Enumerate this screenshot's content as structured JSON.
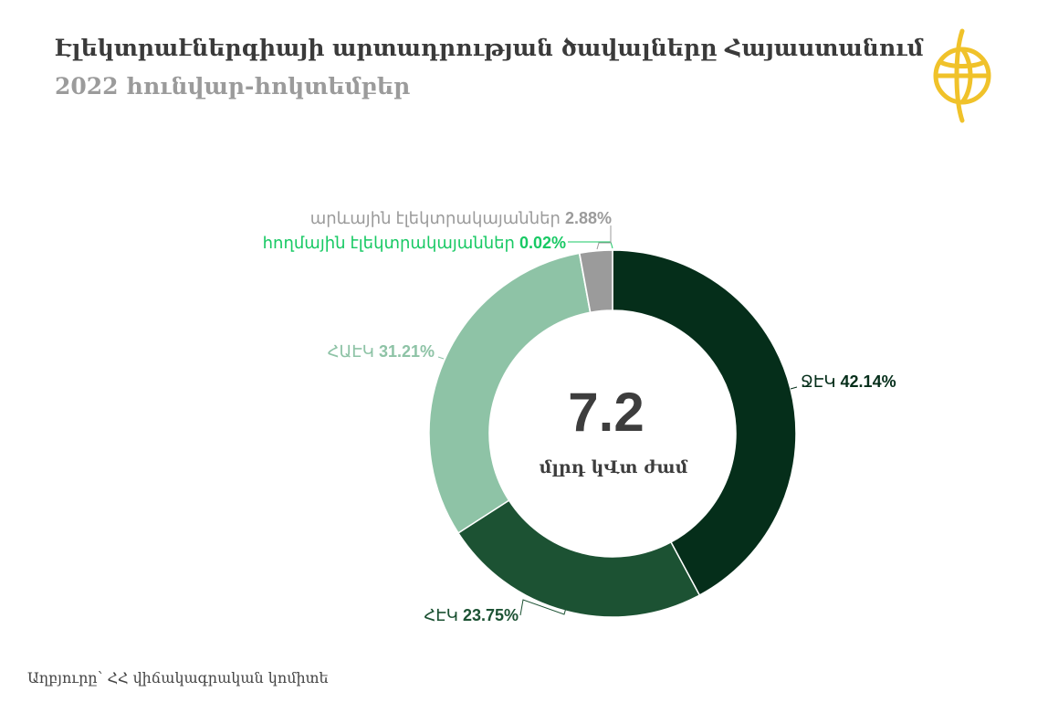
{
  "header": {
    "title": "Էլեկտրաէներգիայի արտադրության ծավալները Հայաստանում",
    "subtitle": "2022 հունվար-հոկտեմբեր"
  },
  "logo": {
    "icon": "globe-emblem-icon",
    "color": "#f0c22a"
  },
  "chart_data": {
    "type": "pie",
    "donut": true,
    "center_value": "7.2",
    "center_unit": "մլրդ կՎտ ժամ",
    "unit": "%",
    "slices": [
      {
        "label": "ՋԷԿ",
        "value": 42.14,
        "value_text": "42.14%",
        "color": "#052e1a"
      },
      {
        "label": "ՀԷԿ",
        "value": 23.75,
        "value_text": "23.75%",
        "color": "#1c5233"
      },
      {
        "label": "ՀԱԷԿ",
        "value": 31.21,
        "value_text": "31.21%",
        "color": "#8ec3a6"
      },
      {
        "label": "հողմային էլեկտրակայաններ",
        "value": 0.02,
        "value_text": "0.02%",
        "color": "#2ecc71"
      },
      {
        "label": "արևային էլեկտրակայաններ",
        "value": 2.88,
        "value_text": "2.88%",
        "color": "#9b9b9b"
      }
    ],
    "label_colors": [
      "#052e1a",
      "#1c5233",
      "#8ec3a6",
      "#18c964",
      "#9b9b9b"
    ]
  },
  "footer": {
    "source": "Աղբյուրը՝ ՀՀ վիճակագրական կոմիտե"
  }
}
